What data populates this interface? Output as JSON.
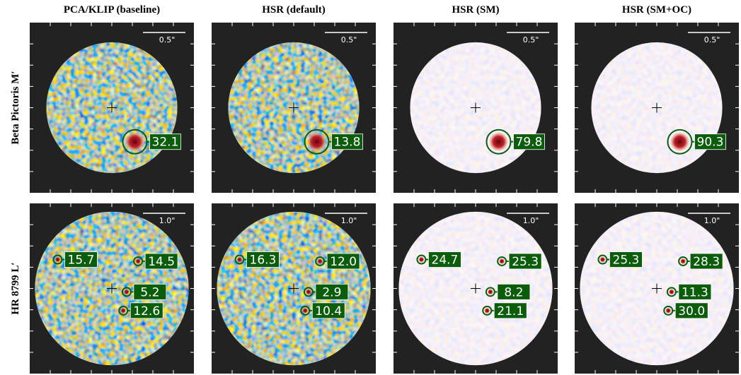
{
  "columns": [
    "PCA/KLIP (baseline)",
    "HSR (default)",
    "HSR (SM)",
    "HSR (SM+OC)"
  ],
  "rows": [
    {
      "label": "Beta Pictoris M′",
      "scale_bar": "0.5\"",
      "panels": [
        {
          "annotations": [
            "32.1"
          ]
        },
        {
          "annotations": [
            "13.8"
          ]
        },
        {
          "annotations": [
            "79.8"
          ]
        },
        {
          "annotations": [
            "90.3"
          ]
        }
      ]
    },
    {
      "label": "HR 8799 L′",
      "scale_bar": "1.0\"",
      "panels": [
        {
          "annotations": [
            "15.7",
            "14.5",
            "5.2",
            "12.6"
          ]
        },
        {
          "annotations": [
            "16.3",
            "12.0",
            "2.9",
            "10.4"
          ]
        },
        {
          "annotations": [
            "24.7",
            "25.3",
            "8.2",
            "21.1"
          ]
        },
        {
          "annotations": [
            "25.3",
            "28.3",
            "11.3",
            "30.0"
          ]
        }
      ]
    }
  ]
}
